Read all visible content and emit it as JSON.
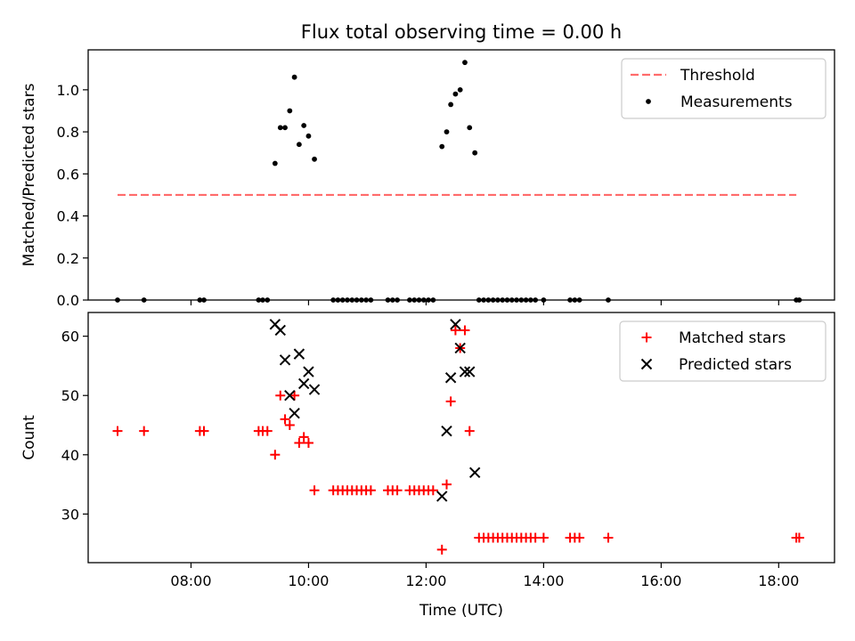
{
  "figure_title": "Flux total observing time = 0.00 h",
  "chart_data": [
    {
      "type": "scatter",
      "title": "Flux total observing time = 0.00 h",
      "xlabel": "",
      "ylabel": "Matched/Predicted stars",
      "x_unit": "hours (UTC)",
      "xlim": [
        6.25,
        18.95
      ],
      "ylim": [
        0,
        1.19
      ],
      "yticks": [
        0.0,
        0.2,
        0.4,
        0.6,
        0.8,
        1.0
      ],
      "xticks": [
        8,
        10,
        12,
        14,
        16,
        18
      ],
      "xtick_labels_shown": false,
      "legend_position": "top-right",
      "threshold": {
        "name": "Threshold",
        "value": 0.5,
        "x_range": [
          6.75,
          18.3
        ],
        "color": "#ff6b6b",
        "style": "dashed"
      },
      "series": [
        {
          "name": "Measurements",
          "marker": "dot",
          "color": "#000000",
          "points": [
            [
              6.75,
              0
            ],
            [
              7.2,
              0
            ],
            [
              8.15,
              0
            ],
            [
              8.22,
              0
            ],
            [
              9.15,
              0
            ],
            [
              9.22,
              0
            ],
            [
              9.3,
              0
            ],
            [
              9.43,
              0.65
            ],
            [
              9.52,
              0.82
            ],
            [
              9.6,
              0.82
            ],
            [
              9.68,
              0.9
            ],
            [
              9.76,
              1.06
            ],
            [
              9.84,
              0.74
            ],
            [
              9.92,
              0.83
            ],
            [
              10.0,
              0.78
            ],
            [
              10.1,
              0.67
            ],
            [
              10.42,
              0
            ],
            [
              10.5,
              0
            ],
            [
              10.58,
              0
            ],
            [
              10.66,
              0
            ],
            [
              10.74,
              0
            ],
            [
              10.82,
              0
            ],
            [
              10.9,
              0
            ],
            [
              10.98,
              0
            ],
            [
              11.06,
              0
            ],
            [
              11.35,
              0
            ],
            [
              11.43,
              0
            ],
            [
              11.51,
              0
            ],
            [
              11.72,
              0
            ],
            [
              11.8,
              0
            ],
            [
              11.88,
              0
            ],
            [
              11.96,
              0
            ],
            [
              12.04,
              0
            ],
            [
              12.12,
              0
            ],
            [
              12.27,
              0.73
            ],
            [
              12.35,
              0.8
            ],
            [
              12.42,
              0.93
            ],
            [
              12.5,
              0.98
            ],
            [
              12.58,
              1.0
            ],
            [
              12.66,
              1.13
            ],
            [
              12.74,
              0.82
            ],
            [
              12.83,
              0.7
            ],
            [
              12.9,
              0
            ],
            [
              12.98,
              0
            ],
            [
              13.06,
              0
            ],
            [
              13.14,
              0
            ],
            [
              13.22,
              0
            ],
            [
              13.3,
              0
            ],
            [
              13.38,
              0
            ],
            [
              13.46,
              0
            ],
            [
              13.54,
              0
            ],
            [
              13.62,
              0
            ],
            [
              13.7,
              0
            ],
            [
              13.78,
              0
            ],
            [
              13.86,
              0
            ],
            [
              14.0,
              0
            ],
            [
              14.45,
              0
            ],
            [
              14.53,
              0
            ],
            [
              14.61,
              0
            ],
            [
              15.1,
              0
            ],
            [
              18.3,
              0
            ],
            [
              18.35,
              0
            ]
          ]
        }
      ]
    },
    {
      "type": "scatter",
      "title": "",
      "xlabel": "Time (UTC)",
      "ylabel": "Count",
      "x_unit": "hours (UTC)",
      "xlim": [
        6.25,
        18.95
      ],
      "ylim": [
        21.8,
        64
      ],
      "yticks": [
        30,
        40,
        50,
        60
      ],
      "xticks": [
        8,
        10,
        12,
        14,
        16,
        18
      ],
      "xtick_labels": [
        "08:00",
        "10:00",
        "12:00",
        "14:00",
        "16:00",
        "18:00"
      ],
      "legend_position": "top-right",
      "series": [
        {
          "name": "Matched stars",
          "marker": "plus",
          "color": "#ff0000",
          "points": [
            [
              6.75,
              44
            ],
            [
              7.2,
              44
            ],
            [
              8.15,
              44
            ],
            [
              8.22,
              44
            ],
            [
              9.15,
              44
            ],
            [
              9.22,
              44
            ],
            [
              9.3,
              44
            ],
            [
              9.43,
              40
            ],
            [
              9.52,
              50
            ],
            [
              9.6,
              46
            ],
            [
              9.68,
              45
            ],
            [
              9.76,
              50
            ],
            [
              9.84,
              42
            ],
            [
              9.92,
              43
            ],
            [
              10.0,
              42
            ],
            [
              10.1,
              34
            ],
            [
              10.42,
              34
            ],
            [
              10.5,
              34
            ],
            [
              10.58,
              34
            ],
            [
              10.66,
              34
            ],
            [
              10.74,
              34
            ],
            [
              10.82,
              34
            ],
            [
              10.9,
              34
            ],
            [
              10.98,
              34
            ],
            [
              11.06,
              34
            ],
            [
              11.35,
              34
            ],
            [
              11.43,
              34
            ],
            [
              11.51,
              34
            ],
            [
              11.72,
              34
            ],
            [
              11.8,
              34
            ],
            [
              11.88,
              34
            ],
            [
              11.96,
              34
            ],
            [
              12.04,
              34
            ],
            [
              12.12,
              34
            ],
            [
              12.27,
              24
            ],
            [
              12.35,
              35
            ],
            [
              12.42,
              49
            ],
            [
              12.5,
              61
            ],
            [
              12.58,
              58
            ],
            [
              12.66,
              61
            ],
            [
              12.74,
              44
            ],
            [
              12.9,
              26
            ],
            [
              12.98,
              26
            ],
            [
              13.06,
              26
            ],
            [
              13.14,
              26
            ],
            [
              13.22,
              26
            ],
            [
              13.3,
              26
            ],
            [
              13.38,
              26
            ],
            [
              13.46,
              26
            ],
            [
              13.54,
              26
            ],
            [
              13.62,
              26
            ],
            [
              13.7,
              26
            ],
            [
              13.78,
              26
            ],
            [
              13.86,
              26
            ],
            [
              14.0,
              26
            ],
            [
              14.45,
              26
            ],
            [
              14.53,
              26
            ],
            [
              14.61,
              26
            ],
            [
              15.1,
              26
            ],
            [
              18.3,
              26
            ],
            [
              18.35,
              26
            ]
          ]
        },
        {
          "name": "Predicted stars",
          "marker": "x",
          "color": "#000000",
          "points": [
            [
              9.43,
              62
            ],
            [
              9.52,
              61
            ],
            [
              9.6,
              56
            ],
            [
              9.68,
              50
            ],
            [
              9.76,
              47
            ],
            [
              9.84,
              57
            ],
            [
              9.92,
              52
            ],
            [
              10.0,
              54
            ],
            [
              10.1,
              51
            ],
            [
              12.27,
              33
            ],
            [
              12.35,
              44
            ],
            [
              12.42,
              53
            ],
            [
              12.5,
              62
            ],
            [
              12.58,
              58
            ],
            [
              12.66,
              54
            ],
            [
              12.74,
              54
            ],
            [
              12.83,
              37
            ]
          ]
        }
      ]
    }
  ]
}
